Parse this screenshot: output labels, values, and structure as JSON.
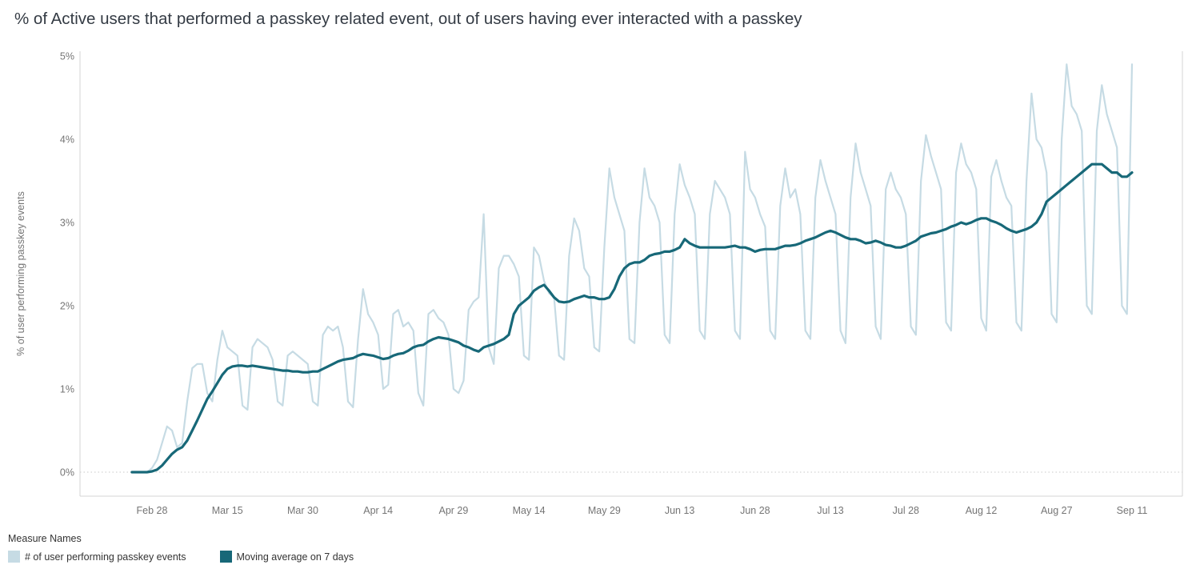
{
  "header": {
    "title": "% of Active users that performed a passkey related event, out of users having ever interacted with a passkey"
  },
  "legend": {
    "title": "Measure Names"
  },
  "chart_data": {
    "type": "line",
    "title": "% of Active users that performed a passkey related event, out of users having ever interacted with a passkey",
    "xlabel": "",
    "ylabel": "% of user performing passkey events",
    "ylim": [
      0,
      5
    ],
    "grid": "dotted zero line only",
    "legend_position": "bottom-left",
    "legend_title": "Measure Names",
    "y_ticks": [
      {
        "label": "0%",
        "value": 0
      },
      {
        "label": "1%",
        "value": 1
      },
      {
        "label": "2%",
        "value": 2
      },
      {
        "label": "3%",
        "value": 3
      },
      {
        "label": "4%",
        "value": 4
      },
      {
        "label": "5%",
        "value": 5
      }
    ],
    "x_ticks": [
      {
        "label": "Feb 28",
        "index": 4
      },
      {
        "label": "Mar 15",
        "index": 19
      },
      {
        "label": "Mar 30",
        "index": 34
      },
      {
        "label": "Apr 14",
        "index": 49
      },
      {
        "label": "Apr 29",
        "index": 64
      },
      {
        "label": "May 14",
        "index": 79
      },
      {
        "label": "May 29",
        "index": 94
      },
      {
        "label": "Jun 13",
        "index": 109
      },
      {
        "label": "Jun 28",
        "index": 124
      },
      {
        "label": "Jul 13",
        "index": 139
      },
      {
        "label": "Jul 28",
        "index": 154
      },
      {
        "label": "Aug 12",
        "index": 169
      },
      {
        "label": "Aug 27",
        "index": 184
      },
      {
        "label": "Sep 11",
        "index": 199
      }
    ],
    "series": [
      {
        "name": "# of user performing passkey events",
        "color": "#c6dbe4",
        "width": 2.2,
        "values": [
          0,
          0,
          0,
          0,
          0.05,
          0.15,
          0.35,
          0.55,
          0.5,
          0.3,
          0.35,
          0.85,
          1.25,
          1.3,
          1.3,
          0.95,
          0.85,
          1.35,
          1.7,
          1.5,
          1.45,
          1.4,
          0.8,
          0.75,
          1.5,
          1.6,
          1.55,
          1.5,
          1.35,
          0.85,
          0.8,
          1.4,
          1.45,
          1.4,
          1.35,
          1.3,
          0.85,
          0.8,
          1.65,
          1.75,
          1.7,
          1.75,
          1.5,
          0.85,
          0.78,
          1.6,
          2.2,
          1.9,
          1.8,
          1.65,
          1.0,
          1.05,
          1.9,
          1.95,
          1.75,
          1.8,
          1.7,
          0.95,
          0.8,
          1.9,
          1.95,
          1.85,
          1.8,
          1.65,
          1.0,
          0.95,
          1.1,
          1.95,
          2.05,
          2.1,
          3.1,
          1.5,
          1.3,
          2.45,
          2.6,
          2.6,
          2.5,
          2.35,
          1.4,
          1.35,
          2.7,
          2.6,
          2.3,
          2.15,
          2.1,
          1.4,
          1.35,
          2.6,
          3.05,
          2.9,
          2.45,
          2.35,
          1.5,
          1.45,
          2.7,
          3.65,
          3.3,
          3.1,
          2.9,
          1.6,
          1.55,
          3.0,
          3.65,
          3.3,
          3.2,
          3.0,
          1.65,
          1.55,
          3.1,
          3.7,
          3.45,
          3.3,
          3.1,
          1.7,
          1.6,
          3.1,
          3.5,
          3.4,
          3.3,
          3.1,
          1.7,
          1.6,
          3.85,
          3.4,
          3.3,
          3.1,
          2.95,
          1.7,
          1.6,
          3.2,
          3.65,
          3.3,
          3.4,
          3.1,
          1.7,
          1.6,
          3.3,
          3.75,
          3.5,
          3.3,
          3.1,
          1.7,
          1.55,
          3.3,
          3.95,
          3.6,
          3.4,
          3.2,
          1.75,
          1.6,
          3.4,
          3.6,
          3.4,
          3.3,
          3.1,
          1.75,
          1.65,
          3.5,
          4.05,
          3.8,
          3.6,
          3.4,
          1.8,
          1.7,
          3.6,
          3.95,
          3.7,
          3.6,
          3.4,
          1.85,
          1.7,
          3.55,
          3.75,
          3.5,
          3.3,
          3.2,
          1.8,
          1.7,
          3.5,
          4.55,
          4.0,
          3.9,
          3.6,
          1.9,
          1.8,
          4.0,
          4.9,
          4.4,
          4.3,
          4.1,
          2.0,
          1.9,
          4.1,
          4.65,
          4.3,
          4.1,
          3.9,
          2.0,
          1.9,
          4.9
        ]
      },
      {
        "name": "Moving average on 7 days",
        "color": "#176878",
        "width": 3.2,
        "values": [
          0,
          0,
          0,
          0,
          0.01,
          0.03,
          0.08,
          0.15,
          0.22,
          0.27,
          0.3,
          0.38,
          0.5,
          0.62,
          0.75,
          0.88,
          0.97,
          1.07,
          1.17,
          1.24,
          1.27,
          1.28,
          1.28,
          1.27,
          1.28,
          1.27,
          1.26,
          1.25,
          1.24,
          1.23,
          1.22,
          1.22,
          1.21,
          1.21,
          1.2,
          1.2,
          1.21,
          1.21,
          1.24,
          1.27,
          1.3,
          1.33,
          1.35,
          1.36,
          1.37,
          1.4,
          1.42,
          1.41,
          1.4,
          1.38,
          1.36,
          1.37,
          1.4,
          1.42,
          1.43,
          1.46,
          1.5,
          1.52,
          1.53,
          1.57,
          1.6,
          1.62,
          1.61,
          1.6,
          1.58,
          1.56,
          1.52,
          1.5,
          1.47,
          1.45,
          1.5,
          1.52,
          1.54,
          1.57,
          1.6,
          1.65,
          1.9,
          2.0,
          2.05,
          2.1,
          2.18,
          2.22,
          2.25,
          2.18,
          2.1,
          2.05,
          2.04,
          2.05,
          2.08,
          2.1,
          2.12,
          2.1,
          2.1,
          2.08,
          2.08,
          2.1,
          2.2,
          2.35,
          2.45,
          2.5,
          2.52,
          2.52,
          2.55,
          2.6,
          2.62,
          2.63,
          2.65,
          2.65,
          2.67,
          2.7,
          2.8,
          2.75,
          2.72,
          2.7,
          2.7,
          2.7,
          2.7,
          2.7,
          2.7,
          2.71,
          2.72,
          2.7,
          2.7,
          2.68,
          2.65,
          2.67,
          2.68,
          2.68,
          2.68,
          2.7,
          2.72,
          2.72,
          2.73,
          2.75,
          2.78,
          2.8,
          2.82,
          2.85,
          2.88,
          2.9,
          2.88,
          2.85,
          2.82,
          2.8,
          2.8,
          2.78,
          2.75,
          2.76,
          2.78,
          2.76,
          2.73,
          2.72,
          2.7,
          2.7,
          2.72,
          2.75,
          2.78,
          2.83,
          2.85,
          2.87,
          2.88,
          2.9,
          2.92,
          2.95,
          2.97,
          3.0,
          2.98,
          3.0,
          3.03,
          3.05,
          3.05,
          3.02,
          3.0,
          2.97,
          2.93,
          2.9,
          2.88,
          2.9,
          2.92,
          2.95,
          3.0,
          3.1,
          3.25,
          3.3,
          3.35,
          3.4,
          3.45,
          3.5,
          3.55,
          3.6,
          3.65,
          3.7,
          3.7,
          3.7,
          3.65,
          3.6,
          3.6,
          3.55,
          3.55,
          3.6
        ]
      }
    ]
  }
}
